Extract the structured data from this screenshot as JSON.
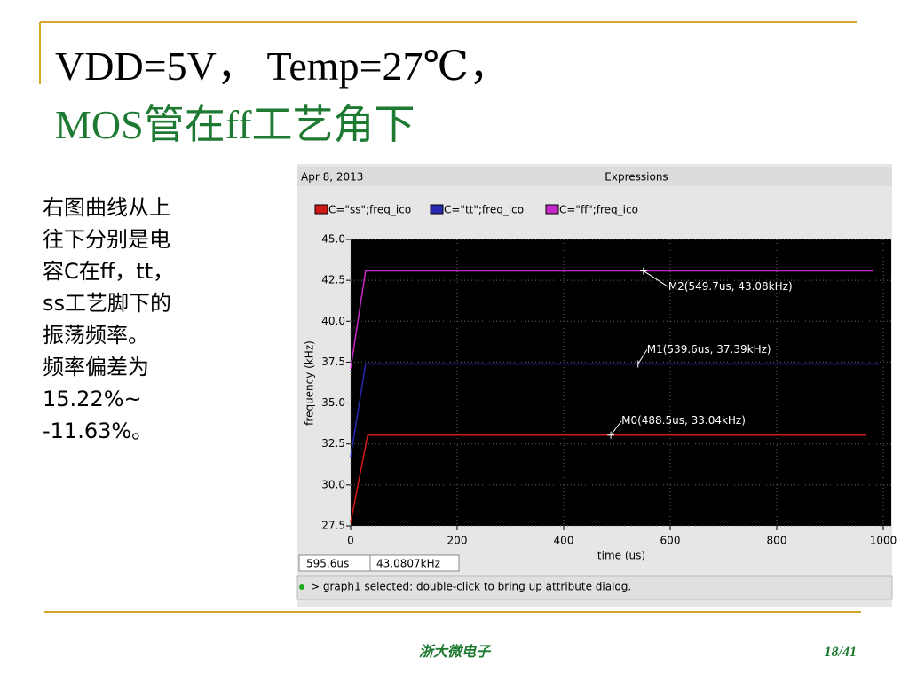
{
  "slide": {
    "title_line1": "VDD=5V， Temp=27℃，",
    "title_line2": "MOS管在ff工艺角下",
    "body": [
      "右图曲线从上",
      "往下分别是电",
      "容C在ff，tt，",
      "ss工艺脚下的",
      "振荡频率。",
      "频率偏差为",
      "15.22%~",
      "-11.63%。"
    ],
    "footer": "浙大微电子",
    "page": "18/41"
  },
  "window": {
    "date": "Apr 8, 2013",
    "status_x": "595.6us",
    "status_y": "43.0807kHz",
    "message": "> graph1 selected: double-click to bring up attribute dialog."
  },
  "chart_data": {
    "type": "line",
    "title": "Expressions",
    "x_label": "time (us)",
    "y_label": "frequency (kHz)",
    "xlim": [
      0,
      1015
    ],
    "ylim": [
      27.5,
      45
    ],
    "xticks": [
      0,
      200,
      400,
      600,
      800,
      1000
    ],
    "yticks": [
      27.5,
      {
        "value": 30,
        "label": "30.0"
      },
      32.5,
      {
        "value": 35,
        "label": "35.0"
      },
      37.5,
      {
        "value": 40,
        "label": "40.0"
      },
      42.5,
      {
        "value": 45,
        "label": "45.0"
      }
    ],
    "grid": true,
    "series": [
      {
        "name": "C=\"ss\";freq_ico",
        "color": "#d01818",
        "x": [
          0,
          32,
          967
        ],
        "values": [
          27.7,
          33.04,
          33.04
        ]
      },
      {
        "name": "C=\"tt\";freq_ico",
        "color": "#2828b0",
        "x": [
          0,
          28,
          992
        ],
        "values": [
          31.7,
          37.39,
          37.39
        ]
      },
      {
        "name": "C=\"ff\";freq_ico",
        "color": "#c828c8",
        "x": [
          0,
          28,
          980
        ],
        "values": [
          37.1,
          43.08,
          43.08
        ]
      }
    ],
    "markers": [
      {
        "label": "M0(488.5us, 33.04kHz)",
        "x": 488.5,
        "y": 33.04
      },
      {
        "label": "M1(539.6us, 37.39kHz)",
        "x": 539.6,
        "y": 37.39
      },
      {
        "label": "M2(549.7us, 43.08kHz)",
        "x": 549.7,
        "y": 43.08
      }
    ]
  }
}
